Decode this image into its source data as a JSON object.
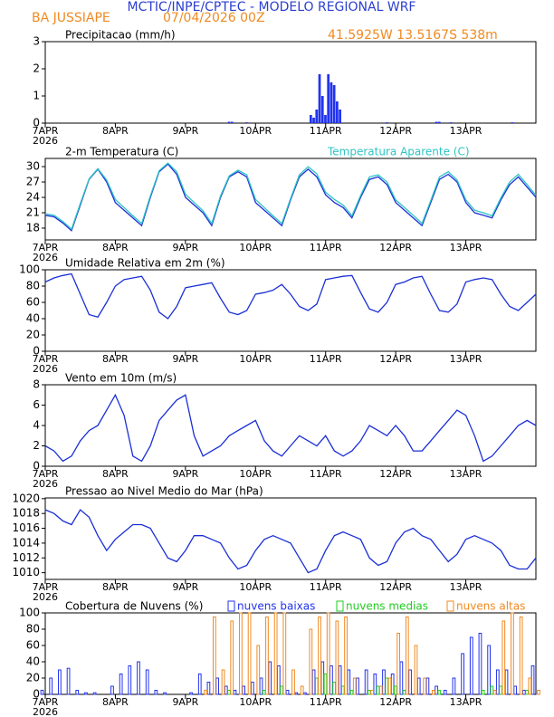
{
  "header": {
    "title": "MCTIC/INPE/CPTEC - MODELO REGIONAL WRF",
    "location": "BA JUSSIAPE",
    "run": "07/04/2026 00Z",
    "coords": "41.5925W 13.5167S 538m"
  },
  "chart_data": [
    {
      "type": "bar",
      "title": "Precipitacao (mm/h)",
      "x": [
        63,
        64,
        69,
        91,
        92,
        93,
        94,
        95,
        96,
        97,
        98,
        99,
        100,
        101,
        117,
        134,
        135,
        139,
        160
      ],
      "series": [
        {
          "color": "#2233ee",
          "values": [
            0.05,
            0.05,
            0.03,
            0.3,
            0.2,
            0.5,
            1.8,
            1.0,
            0.3,
            1.8,
            1.5,
            1.4,
            0.8,
            0.5,
            0.03,
            0.05,
            0.05,
            0.03,
            0.03
          ]
        }
      ],
      "xlim": [
        0,
        168
      ],
      "ylim": [
        0,
        3
      ],
      "yticks": [
        0,
        1,
        2,
        3
      ],
      "xticks": [
        {
          "value": 0,
          "label": "7APR"
        },
        {
          "value": 24,
          "label": "8APR"
        },
        {
          "value": 48,
          "label": "9APR"
        },
        {
          "value": 72,
          "label": "10APR"
        },
        {
          "value": 96,
          "label": "11APR"
        },
        {
          "value": 120,
          "label": "12APR"
        },
        {
          "value": 144,
          "label": "13APR"
        }
      ],
      "year": "2026"
    },
    {
      "type": "line",
      "legend": "inline",
      "x": [
        0,
        3,
        6,
        9,
        12,
        15,
        18,
        21,
        24,
        27,
        30,
        33,
        36,
        39,
        42,
        45,
        48,
        51,
        54,
        57,
        60,
        63,
        66,
        69,
        72,
        75,
        78,
        81,
        84,
        87,
        90,
        93,
        96,
        99,
        102,
        105,
        108,
        111,
        114,
        117,
        120,
        123,
        126,
        129,
        132,
        135,
        138,
        141,
        144,
        147,
        150,
        153,
        156,
        159,
        162,
        165,
        168
      ],
      "series": [
        {
          "name": "2-m Temperatura (C)",
          "color": "#1a2fd6",
          "label_color": "#000000",
          "values": [
            20.5,
            20.2,
            19,
            17.5,
            22.5,
            27.5,
            29.5,
            27,
            23,
            21.5,
            20,
            18.5,
            24,
            29,
            30.5,
            28.5,
            24,
            22.5,
            21,
            18.5,
            24,
            28,
            29,
            28,
            23,
            21.5,
            20,
            18.5,
            23.5,
            28,
            29.5,
            28,
            24.5,
            23,
            22,
            20,
            24,
            27.5,
            28,
            26.5,
            23,
            21.5,
            20,
            18.5,
            23,
            27.5,
            28.5,
            27,
            23,
            21,
            20.5,
            20,
            23.5,
            26.5,
            28,
            26,
            24
          ]
        },
        {
          "name": "Temperatura Aparente (C)",
          "color": "#2ec4c4",
          "label_color": "#2ec4c4",
          "values": [
            20.8,
            20.5,
            19.3,
            17.8,
            22.8,
            27.6,
            29.6,
            27.4,
            23.6,
            22,
            20.4,
            18.9,
            24.3,
            29.2,
            30.7,
            29,
            24.6,
            23,
            21.4,
            18.9,
            24.3,
            28.2,
            29.3,
            28.4,
            23.6,
            22,
            20.4,
            18.9,
            23.8,
            28.4,
            30,
            28.6,
            25,
            23.6,
            22.5,
            20.4,
            24.4,
            28,
            28.4,
            27,
            23.5,
            22,
            20.5,
            18.9,
            23.4,
            28,
            29,
            27.4,
            23.5,
            21.5,
            21,
            20.4,
            23.9,
            27,
            28.5,
            26.5,
            24.4
          ]
        }
      ],
      "xlim": [
        0,
        168
      ],
      "ylim": [
        15.7,
        31.6
      ],
      "yticks": [
        18,
        21,
        24,
        27,
        30
      ],
      "xticks": [
        {
          "value": 0,
          "label": "7APR"
        },
        {
          "value": 24,
          "label": "8APR"
        },
        {
          "value": 48,
          "label": "9APR"
        },
        {
          "value": 72,
          "label": "10APR"
        },
        {
          "value": 96,
          "label": "11APR"
        },
        {
          "value": 120,
          "label": "12APR"
        },
        {
          "value": 144,
          "label": "13APR"
        }
      ],
      "year": "2026"
    },
    {
      "type": "line",
      "title": "Umidade Relativa em 2m (%)",
      "x": [
        0,
        3,
        6,
        9,
        12,
        15,
        18,
        21,
        24,
        27,
        30,
        33,
        36,
        39,
        42,
        45,
        48,
        51,
        54,
        57,
        60,
        63,
        66,
        69,
        72,
        75,
        78,
        81,
        84,
        87,
        90,
        93,
        96,
        99,
        102,
        105,
        108,
        111,
        114,
        117,
        120,
        123,
        126,
        129,
        132,
        135,
        138,
        141,
        144,
        147,
        150,
        153,
        156,
        159,
        162,
        165,
        168
      ],
      "series": [
        {
          "color": "#1a2fd6",
          "values": [
            85,
            90,
            93,
            95,
            70,
            45,
            42,
            60,
            80,
            88,
            90,
            92,
            75,
            48,
            40,
            55,
            78,
            80,
            82,
            84,
            65,
            48,
            45,
            50,
            70,
            72,
            75,
            82,
            70,
            55,
            50,
            58,
            88,
            90,
            92,
            93,
            72,
            52,
            48,
            60,
            82,
            85,
            90,
            92,
            70,
            50,
            48,
            58,
            85,
            88,
            90,
            88,
            70,
            55,
            50,
            60,
            70
          ]
        }
      ],
      "xlim": [
        0,
        168
      ],
      "ylim": [
        0,
        100
      ],
      "yticks": [
        0,
        20,
        40,
        60,
        80,
        100
      ],
      "xticks": [
        {
          "value": 0,
          "label": "7APR"
        },
        {
          "value": 24,
          "label": "8APR"
        },
        {
          "value": 48,
          "label": "9APR"
        },
        {
          "value": 72,
          "label": "10APR"
        },
        {
          "value": 96,
          "label": "11APR"
        },
        {
          "value": 120,
          "label": "12APR"
        },
        {
          "value": 144,
          "label": "13APR"
        }
      ],
      "year": "2026"
    },
    {
      "type": "line",
      "title": "Vento em 10m (m/s)",
      "x": [
        0,
        3,
        6,
        9,
        12,
        15,
        18,
        21,
        24,
        27,
        30,
        33,
        36,
        39,
        42,
        45,
        48,
        51,
        54,
        57,
        60,
        63,
        66,
        69,
        72,
        75,
        78,
        81,
        84,
        87,
        90,
        93,
        96,
        99,
        102,
        105,
        108,
        111,
        114,
        117,
        120,
        123,
        126,
        129,
        132,
        135,
        138,
        141,
        144,
        147,
        150,
        153,
        156,
        159,
        162,
        165,
        168
      ],
      "series": [
        {
          "color": "#1a2fd6",
          "values": [
            2,
            1.5,
            0.5,
            1,
            2.5,
            3.5,
            4,
            5.5,
            7,
            5,
            1,
            0.5,
            2,
            4.5,
            5.5,
            6.5,
            7,
            3,
            1,
            1.5,
            2,
            3,
            3.5,
            4,
            4.5,
            2.5,
            1.5,
            1,
            2,
            3,
            2.5,
            2,
            3,
            1.5,
            1,
            1.5,
            2.5,
            4,
            3.5,
            3,
            4,
            3,
            1.5,
            1.5,
            2.5,
            3.5,
            4.5,
            5.5,
            5,
            3,
            0.5,
            1,
            2,
            3,
            4,
            4.5,
            4
          ]
        }
      ],
      "xlim": [
        0,
        168
      ],
      "ylim": [
        0,
        8
      ],
      "yticks": [
        0,
        2,
        4,
        6,
        8
      ],
      "xticks": [
        {
          "value": 0,
          "label": "7APR"
        },
        {
          "value": 24,
          "label": "8APR"
        },
        {
          "value": 48,
          "label": "9APR"
        },
        {
          "value": 72,
          "label": "10APR"
        },
        {
          "value": 96,
          "label": "11APR"
        },
        {
          "value": 120,
          "label": "12APR"
        },
        {
          "value": 144,
          "label": "13APR"
        }
      ],
      "year": "2026"
    },
    {
      "type": "line",
      "title": "Pressao ao Nivel Medio do Mar (hPa)",
      "x": [
        0,
        3,
        6,
        9,
        12,
        15,
        18,
        21,
        24,
        27,
        30,
        33,
        36,
        39,
        42,
        45,
        48,
        51,
        54,
        57,
        60,
        63,
        66,
        69,
        72,
        75,
        78,
        81,
        84,
        87,
        90,
        93,
        96,
        99,
        102,
        105,
        108,
        111,
        114,
        117,
        120,
        123,
        126,
        129,
        132,
        135,
        138,
        141,
        144,
        147,
        150,
        153,
        156,
        159,
        162,
        165,
        168
      ],
      "series": [
        {
          "color": "#1a2fd6",
          "values": [
            1018.5,
            1018,
            1017,
            1016.5,
            1018.5,
            1017.5,
            1015,
            1013,
            1014.5,
            1015.5,
            1016.5,
            1016.5,
            1016,
            1014,
            1012,
            1011.5,
            1013,
            1015,
            1015,
            1014.5,
            1014,
            1012,
            1010.5,
            1011,
            1013,
            1014.5,
            1015,
            1014.5,
            1014,
            1012,
            1010,
            1010.5,
            1013,
            1015,
            1015.5,
            1015,
            1014.5,
            1012,
            1011,
            1011.5,
            1014,
            1015.5,
            1016,
            1015,
            1014.5,
            1013,
            1011.5,
            1012.5,
            1014.5,
            1015,
            1014.5,
            1014,
            1013,
            1011,
            1010.5,
            1010.5,
            1012
          ]
        }
      ],
      "xlim": [
        0,
        168
      ],
      "ylim": [
        1009.1,
        1020.1
      ],
      "yticks": [
        1010,
        1012,
        1014,
        1016,
        1018,
        1020
      ],
      "xticks": [
        {
          "value": 0,
          "label": "7APR"
        },
        {
          "value": 24,
          "label": "8APR"
        },
        {
          "value": 48,
          "label": "9APR"
        },
        {
          "value": 72,
          "label": "10APR"
        },
        {
          "value": 96,
          "label": "11APR"
        },
        {
          "value": 120,
          "label": "12APR"
        },
        {
          "value": 144,
          "label": "13APR"
        }
      ],
      "year": "2026"
    },
    {
      "type": "bar",
      "title": "Cobertura de Nuvens (%)",
      "legend": "boxes",
      "outline": true,
      "x": [
        0,
        3,
        6,
        9,
        12,
        15,
        18,
        21,
        24,
        27,
        30,
        33,
        36,
        39,
        42,
        45,
        48,
        51,
        54,
        57,
        60,
        63,
        66,
        69,
        72,
        75,
        78,
        81,
        84,
        87,
        90,
        93,
        96,
        99,
        102,
        105,
        108,
        111,
        114,
        117,
        120,
        123,
        126,
        129,
        132,
        135,
        138,
        141,
        144,
        147,
        150,
        153,
        156,
        159,
        162,
        165,
        168
      ],
      "series": [
        {
          "name": "nuvens baixas",
          "color": "#2233ee",
          "label_color": "#2233ee",
          "values": [
            5,
            20,
            30,
            32,
            5,
            2,
            2,
            0,
            10,
            25,
            35,
            40,
            30,
            5,
            2,
            0,
            0,
            2,
            25,
            15,
            20,
            10,
            5,
            10,
            15,
            20,
            40,
            35,
            5,
            2,
            2,
            30,
            40,
            35,
            35,
            30,
            20,
            30,
            25,
            30,
            25,
            40,
            30,
            20,
            20,
            10,
            5,
            20,
            50,
            70,
            75,
            60,
            30,
            30,
            10,
            5,
            35
          ]
        },
        {
          "name": "nuvens medias",
          "color": "#22cc22",
          "label_color": "#22cc22",
          "values": [
            0,
            0,
            0,
            0,
            0,
            0,
            0,
            0,
            0,
            0,
            0,
            0,
            0,
            0,
            0,
            0,
            0,
            0,
            0,
            0,
            0,
            5,
            0,
            0,
            0,
            5,
            0,
            10,
            0,
            0,
            0,
            20,
            25,
            15,
            10,
            5,
            0,
            5,
            10,
            20,
            10,
            5,
            0,
            0,
            0,
            5,
            0,
            0,
            0,
            0,
            5,
            10,
            10,
            0,
            0,
            5,
            0
          ]
        },
        {
          "name": "nuvens altas",
          "color": "#f08a22",
          "label_color": "#f08a22",
          "values": [
            0,
            0,
            0,
            0,
            0,
            0,
            0,
            0,
            0,
            0,
            0,
            0,
            0,
            0,
            0,
            0,
            0,
            0,
            5,
            95,
            30,
            90,
            100,
            100,
            60,
            95,
            100,
            100,
            30,
            10,
            80,
            95,
            100,
            90,
            95,
            20,
            0,
            5,
            10,
            20,
            75,
            95,
            60,
            20,
            5,
            0,
            0,
            0,
            0,
            0,
            0,
            5,
            90,
            100,
            95,
            20,
            5
          ]
        }
      ],
      "xlim": [
        0,
        168
      ],
      "ylim": [
        0,
        100
      ],
      "yticks": [
        0,
        20,
        40,
        60,
        80,
        100
      ],
      "xticks": [
        {
          "value": 0,
          "label": "7APR"
        },
        {
          "value": 24,
          "label": "8APR"
        },
        {
          "value": 48,
          "label": "9APR"
        },
        {
          "value": 72,
          "label": "10APR"
        },
        {
          "value": 96,
          "label": "11APR"
        },
        {
          "value": 120,
          "label": "12APR"
        },
        {
          "value": 144,
          "label": "13APR"
        }
      ],
      "year": "2026"
    }
  ]
}
